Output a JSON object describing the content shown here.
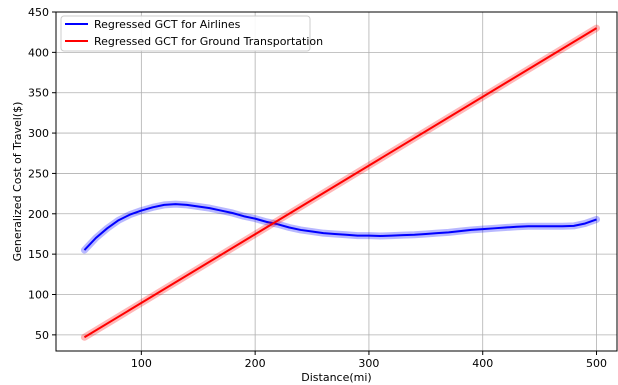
{
  "chart_data": {
    "type": "line",
    "title": "",
    "xlabel": "Distance(mi)",
    "ylabel": "Generalized Cost of Travel($)",
    "xlim": [
      25,
      518
    ],
    "ylim": [
      30,
      450
    ],
    "xticks": [
      100,
      200,
      300,
      400,
      500
    ],
    "yticks": [
      50,
      100,
      150,
      200,
      250,
      300,
      350,
      400,
      450
    ],
    "grid": true,
    "legend": "upper-left",
    "series": [
      {
        "name": "Regressed GCT for Airlines",
        "color": "#0000ff",
        "x": [
          50,
          60,
          70,
          80,
          90,
          100,
          110,
          120,
          130,
          140,
          150,
          160,
          170,
          180,
          190,
          200,
          210,
          220,
          230,
          240,
          250,
          260,
          270,
          280,
          290,
          300,
          310,
          320,
          330,
          340,
          350,
          360,
          370,
          380,
          390,
          400,
          410,
          420,
          430,
          440,
          450,
          460,
          470,
          480,
          490,
          500
        ],
        "y": [
          155,
          170,
          182,
          192,
          199,
          204,
          208,
          211,
          212,
          211,
          209,
          207,
          204,
          201,
          197,
          194,
          190,
          187,
          183,
          180,
          178,
          176,
          175,
          174,
          173,
          173,
          172.5,
          173,
          173.5,
          174,
          175,
          176,
          177,
          178.5,
          180,
          181,
          182,
          183,
          184,
          184.5,
          184.5,
          184.5,
          184.5,
          185,
          188,
          193
        ]
      },
      {
        "name": "Regressed GCT for Ground Transportation",
        "color": "#ff0000",
        "x": [
          50,
          500
        ],
        "y": [
          47,
          430
        ]
      }
    ]
  }
}
